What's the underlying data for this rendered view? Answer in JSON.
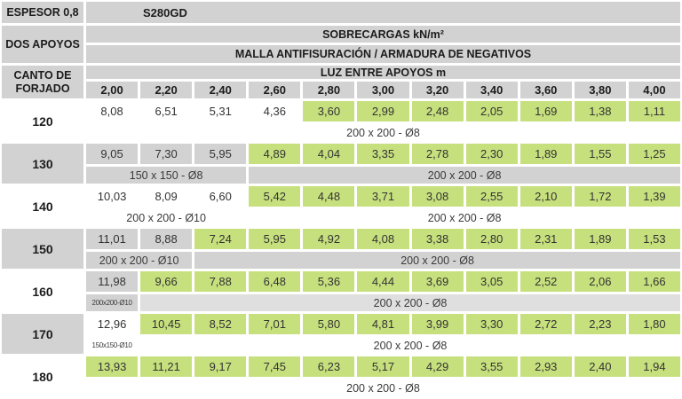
{
  "table": {
    "top": {
      "espesor": "ESPESOR 0,8",
      "steel": "S280GD"
    },
    "left": {
      "dos_apoyos": "DOS APOYOS",
      "canto_line1": "CANTO DE",
      "canto_line2": "FORJADO"
    },
    "headers": {
      "sobrecargas": "SOBRECARGAS kN/m²",
      "malla": "MALLA ANTIFISURACIÓN / ARMADURA DE NEGATIVOS",
      "luz": "LUZ ENTRE APOYOS m"
    },
    "spans": [
      "2,00",
      "2,20",
      "2,40",
      "2,60",
      "2,80",
      "3,00",
      "3,20",
      "3,40",
      "3,60",
      "3,80",
      "4,00"
    ],
    "colors": {
      "gray": "#d2d2d2",
      "gray_light": "#dfdfdf",
      "green": "#c7e07e"
    },
    "rows": [
      {
        "canto": "120",
        "label_bg": "white",
        "value_bg": "white",
        "green_from": 4,
        "values": [
          "8,08",
          "6,51",
          "5,31",
          "4,36",
          "3,60",
          "2,99",
          "2,48",
          "2,05",
          "1,69",
          "1,38",
          "1,11"
        ],
        "mesh": [
          {
            "label": "200 x 200 - Ø8",
            "span": 11,
            "bg": "white",
            "small": false
          }
        ]
      },
      {
        "canto": "130",
        "label_bg": "gray",
        "value_bg": "gray",
        "green_from": 3,
        "values": [
          "9,05",
          "7,30",
          "5,95",
          "4,89",
          "4,04",
          "3,35",
          "2,78",
          "2,30",
          "1,89",
          "1,55",
          "1,25"
        ],
        "mesh": [
          {
            "label": "150 x 150 - Ø8",
            "span": 3,
            "bg": "gray",
            "small": false
          },
          {
            "label": "200 x 200 - Ø8",
            "span": 8,
            "bg": "gray",
            "small": false
          }
        ]
      },
      {
        "canto": "140",
        "label_bg": "white",
        "value_bg": "white",
        "green_from": 3,
        "values": [
          "10,03",
          "8,09",
          "6,60",
          "5,42",
          "4,48",
          "3,71",
          "3,08",
          "2,55",
          "2,10",
          "1,72",
          "1,39"
        ],
        "mesh": [
          {
            "label": "200 x 200 - Ø10",
            "span": 3,
            "bg": "white",
            "small": false
          },
          {
            "label": "200 x 200 - Ø8",
            "span": 8,
            "bg": "white",
            "small": false
          }
        ]
      },
      {
        "canto": "150",
        "label_bg": "gray",
        "value_bg": "gray",
        "green_from": 2,
        "values": [
          "11,01",
          "8,88",
          "7,24",
          "5,95",
          "4,92",
          "4,08",
          "3,38",
          "2,80",
          "2,31",
          "1,89",
          "1,53"
        ],
        "mesh": [
          {
            "label": "200 x 200 - Ø10",
            "span": 2,
            "bg": "gray",
            "small": false
          },
          {
            "label": "200 x 200 - Ø8",
            "span": 9,
            "bg": "gray",
            "small": false
          }
        ]
      },
      {
        "canto": "160",
        "label_bg": "white",
        "value_bg": "gray",
        "green_from": 1,
        "values": [
          "11,98",
          "9,66",
          "7,88",
          "6,48",
          "5,36",
          "4,44",
          "3,69",
          "3,05",
          "2,52",
          "2,06",
          "1,66"
        ],
        "mesh": [
          {
            "label": "200x200-Ø10",
            "span": 1,
            "bg": "gray",
            "small": true
          },
          {
            "label": "200 x 200 - Ø8",
            "span": 10,
            "bg": "gray_light",
            "small": false
          }
        ]
      },
      {
        "canto": "170",
        "label_bg": "gray",
        "value_bg": "white",
        "green_from": 1,
        "values": [
          "12,96",
          "10,45",
          "8,52",
          "7,01",
          "5,80",
          "4,81",
          "3,99",
          "3,30",
          "2,72",
          "2,23",
          "1,80"
        ],
        "mesh": [
          {
            "label": "150x150-Ø10",
            "span": 1,
            "bg": "white",
            "small": true
          },
          {
            "label": "200 x 200 - Ø8",
            "span": 10,
            "bg": "white",
            "small": false
          }
        ]
      },
      {
        "canto": "180",
        "label_bg": "white",
        "value_bg": "white",
        "green_from": 0,
        "values": [
          "13,93",
          "11,21",
          "9,17",
          "7,45",
          "6,23",
          "5,17",
          "4,29",
          "3,55",
          "2,93",
          "2,40",
          "1,94"
        ],
        "mesh": [
          {
            "label": "200 x 200 - Ø8",
            "span": 11,
            "bg": "white",
            "small": false
          }
        ]
      }
    ]
  }
}
